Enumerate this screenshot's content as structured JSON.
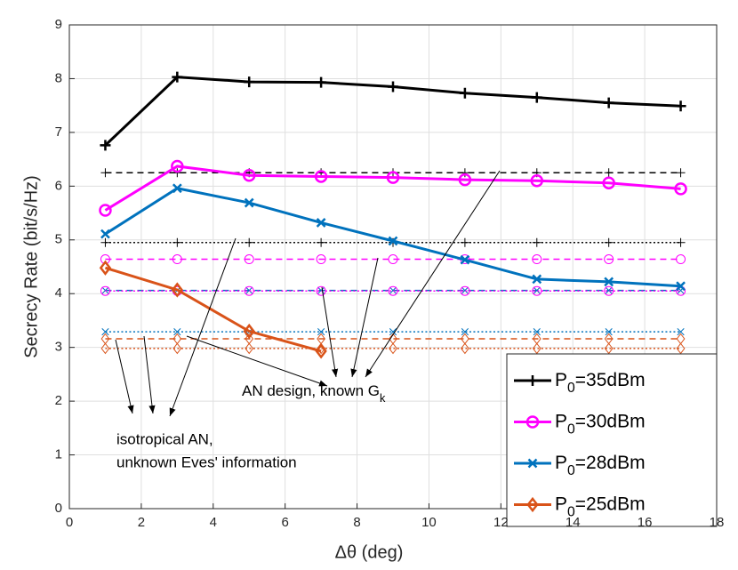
{
  "chart_data": {
    "type": "line",
    "xlabel": "Δθ (deg)",
    "ylabel": "Secrecy Rate (bit/s/Hz)",
    "x": [
      1,
      3,
      5,
      7,
      9,
      11,
      13,
      15,
      17
    ],
    "xlim": [
      0,
      18
    ],
    "xticks": [
      0,
      2,
      4,
      6,
      8,
      10,
      12,
      14,
      16,
      18
    ],
    "ylim": [
      0,
      9
    ],
    "yticks": [
      0,
      1,
      2,
      3,
      4,
      5,
      6,
      7,
      8,
      9
    ],
    "grid": true,
    "legend": "lower right",
    "series": [
      {
        "name": "P0=35dBm",
        "color": "#000000",
        "marker": "plus",
        "style": "solid",
        "values": [
          6.76,
          8.03,
          7.94,
          7.93,
          7.85,
          7.73,
          7.65,
          7.55,
          7.49
        ]
      },
      {
        "name": "P0=30dBm",
        "color": "#ff00ff",
        "marker": "circle",
        "style": "solid",
        "values": [
          5.55,
          6.37,
          6.2,
          6.18,
          6.16,
          6.12,
          6.1,
          6.06,
          5.95
        ]
      },
      {
        "name": "P0=28dBm",
        "color": "#0072bd",
        "marker": "x",
        "style": "solid",
        "values": [
          5.11,
          5.96,
          5.69,
          5.32,
          4.98,
          4.63,
          4.27,
          4.22,
          4.14
        ]
      },
      {
        "name": "P0=25dBm",
        "color": "#d95319",
        "marker": "diamond",
        "style": "solid",
        "values": [
          4.48,
          4.07,
          3.3,
          2.93,
          null,
          null,
          null,
          null,
          null
        ]
      },
      {
        "color": "#000000",
        "marker": "plus",
        "style": "dashed",
        "values": [
          6.25,
          6.25,
          6.25,
          6.25,
          6.25,
          6.25,
          6.25,
          6.25,
          6.25
        ]
      },
      {
        "color": "#ff00ff",
        "marker": "circle",
        "style": "dashed",
        "values": [
          4.64,
          4.64,
          4.64,
          4.64,
          4.64,
          4.64,
          4.64,
          4.64,
          4.64
        ]
      },
      {
        "color": "#0072bd",
        "marker": "x",
        "style": "dashed",
        "values": [
          4.06,
          4.06,
          4.06,
          4.06,
          4.06,
          4.06,
          4.06,
          4.06,
          4.06
        ]
      },
      {
        "color": "#d95319",
        "marker": "diamond",
        "style": "dashed",
        "values": [
          3.16,
          3.16,
          3.16,
          3.16,
          3.16,
          3.16,
          3.16,
          3.16,
          3.16
        ]
      },
      {
        "color": "#000000",
        "marker": "plus",
        "style": "dotted",
        "values": [
          4.95,
          4.95,
          4.95,
          4.95,
          4.95,
          4.95,
          4.95,
          4.95,
          4.95
        ]
      },
      {
        "color": "#ff00ff",
        "marker": "circle",
        "style": "dotted",
        "values": [
          4.05,
          4.05,
          4.05,
          4.05,
          4.05,
          4.05,
          4.05,
          4.05,
          4.05
        ]
      },
      {
        "color": "#0072bd",
        "marker": "x",
        "style": "dotted",
        "values": [
          3.29,
          3.29,
          3.29,
          3.29,
          3.29,
          3.29,
          3.29,
          3.29,
          3.29
        ]
      },
      {
        "color": "#d95319",
        "marker": "diamond",
        "style": "dotted",
        "values": [
          2.98,
          2.98,
          2.98,
          2.98,
          2.98,
          2.98,
          2.98,
          2.98,
          2.98
        ]
      }
    ],
    "annotations": [
      "AN design, known Gk",
      "isotropical AN,",
      "unknown Eves' information"
    ]
  }
}
